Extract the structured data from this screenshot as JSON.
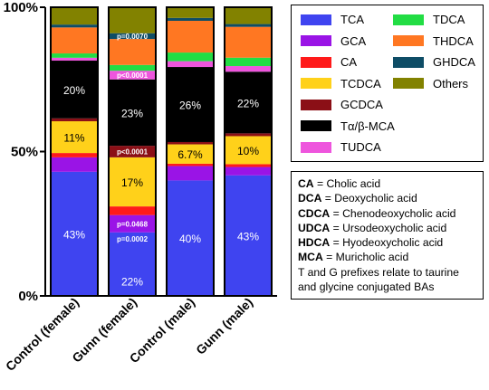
{
  "chart_data": {
    "type": "bar",
    "stacked": true,
    "normalized": true,
    "categories": [
      "Control (female)",
      "Gunn (female)",
      "Control (male)",
      "Gunn (male)"
    ],
    "ylim": [
      0,
      100
    ],
    "yticks": [
      {
        "value": 0,
        "label": "0%"
      },
      {
        "value": 50,
        "label": "50%"
      },
      {
        "value": 100,
        "label": "100%"
      }
    ],
    "series": [
      {
        "name": "TCA",
        "color": "#3f44f0",
        "values": [
          43,
          22,
          40,
          43
        ],
        "labels": [
          "43%",
          "22%",
          "40%",
          "43%"
        ]
      },
      {
        "name": "GCA",
        "color": "#9a14e6",
        "values": [
          5,
          6,
          5,
          3
        ],
        "labels": [
          "",
          "",
          "",
          ""
        ]
      },
      {
        "name": "CA",
        "color": "#ff1a1a",
        "values": [
          1.5,
          3,
          0.8,
          1
        ],
        "labels": [
          "",
          "",
          "",
          ""
        ]
      },
      {
        "name": "TCDCA",
        "color": "#ffd11a",
        "values": [
          11,
          17,
          6.7,
          10
        ],
        "labels": [
          "11%",
          "17%",
          "6.7%",
          "10%"
        ]
      },
      {
        "name": "GCDCA",
        "color": "#8b0f16",
        "values": [
          1,
          4,
          0.8,
          1
        ],
        "labels": [
          "",
          "",
          "",
          ""
        ]
      },
      {
        "name": "Tα/β-MCA",
        "color": "#000000",
        "values": [
          20,
          23,
          26,
          22
        ],
        "labels": [
          "20%",
          "23%",
          "26%",
          "22%"
        ]
      },
      {
        "name": "TUDCA",
        "color": "#ee55dd",
        "values": [
          1,
          3,
          2,
          2
        ],
        "labels": [
          "",
          "",
          "",
          ""
        ]
      },
      {
        "name": "TDCA",
        "color": "#22dd44",
        "values": [
          1.5,
          2,
          3,
          3
        ],
        "labels": [
          "",
          "",
          "",
          ""
        ]
      },
      {
        "name": "THDCA",
        "color": "#ff7722",
        "values": [
          9,
          9,
          11,
          11
        ],
        "labels": [
          "",
          "",
          "",
          ""
        ]
      },
      {
        "name": "GHDCA",
        "color": "#0e4d66",
        "values": [
          1,
          2,
          1,
          1
        ],
        "labels": [
          "",
          "",
          "",
          ""
        ]
      },
      {
        "name": "Others",
        "color": "#828200",
        "values": [
          6,
          9,
          3.7,
          6
        ],
        "labels": [
          "",
          "",
          "",
          ""
        ]
      }
    ],
    "annotations": [
      {
        "category": "Gunn (female)",
        "series": "TCA",
        "text": "p=0.0002"
      },
      {
        "category": "Gunn (female)",
        "series": "GCA",
        "text": "p=0.0468"
      },
      {
        "category": "Gunn (female)",
        "series": "GCDCA",
        "text": "p<0.0001"
      },
      {
        "category": "Gunn (female)",
        "series": "TUDCA",
        "text": "p<0.0001"
      },
      {
        "category": "Gunn (female)",
        "series": "GHDCA",
        "text": "p=0.0070"
      }
    ],
    "legend": {
      "placement": "right",
      "columns": 2
    }
  },
  "abbreviations": [
    {
      "abbr": "CA",
      "text": " = Cholic acid"
    },
    {
      "abbr": "DCA",
      "text": " = Deoxycholic acid"
    },
    {
      "abbr": "CDCA",
      "text": " = Chenodeoxycholic acid"
    },
    {
      "abbr": "UDCA",
      "text": " = Ursodeoxycholic acid"
    },
    {
      "abbr": "HDCA",
      "text": " = Hyodeoxycholic acid"
    },
    {
      "abbr": "MCA",
      "text": " = Muricholic acid"
    }
  ],
  "abbreviation_note": [
    "T and G prefixes relate to taurine",
    "and glycine conjugated BAs"
  ]
}
